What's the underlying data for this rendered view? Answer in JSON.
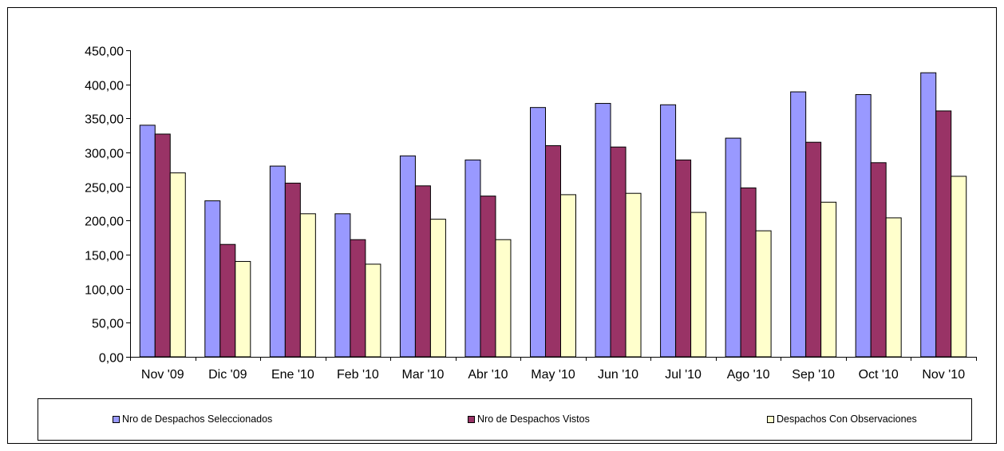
{
  "chart_data": {
    "type": "bar",
    "categories": [
      "Nov '09",
      "Dic '09",
      "Ene '10",
      "Feb '10",
      "Mar '10",
      "Abr '10",
      "May '10",
      "Jun '10",
      "Jul '10",
      "Ago '10",
      "Sep '10",
      "Oct '10",
      "Nov '10"
    ],
    "series": [
      {
        "name": "Nro de Despachos Seleccionados",
        "color": "#9999ff",
        "values": [
          340,
          229,
          280,
          210,
          295,
          289,
          366,
          372,
          370,
          321,
          389,
          385,
          417
        ]
      },
      {
        "name": "Nro de Despachos Vistos",
        "color": "#993366",
        "values": [
          327,
          165,
          255,
          172,
          251,
          236,
          310,
          308,
          289,
          248,
          315,
          285,
          361
        ]
      },
      {
        "name": "Despachos Con Observaciones",
        "color": "#ffffcc",
        "values": [
          270,
          140,
          210,
          136,
          202,
          172,
          238,
          240,
          212,
          185,
          227,
          204,
          265
        ]
      }
    ],
    "y_ticks": [
      "0,00",
      "50,00",
      "100,00",
      "150,00",
      "200,00",
      "250,00",
      "300,00",
      "350,00",
      "400,00",
      "450,00"
    ],
    "ylim": [
      0,
      450
    ],
    "grid": false,
    "legend_position": "bottom",
    "title": "",
    "xlabel": "",
    "ylabel": ""
  }
}
